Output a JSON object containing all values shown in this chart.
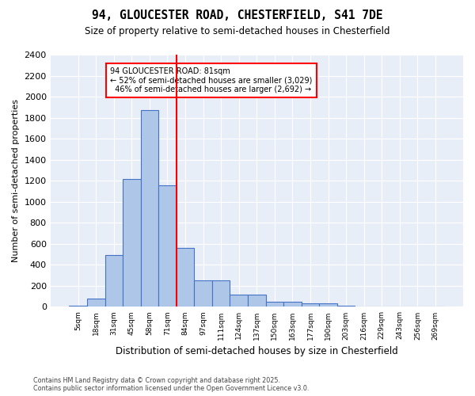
{
  "title1": "94, GLOUCESTER ROAD, CHESTERFIELD, S41 7DE",
  "title2": "Size of property relative to semi-detached houses in Chesterfield",
  "xlabel": "Distribution of semi-detached houses by size in Chesterfield",
  "ylabel": "Number of semi-detached properties",
  "bins": [
    "5sqm",
    "18sqm",
    "31sqm",
    "45sqm",
    "58sqm",
    "71sqm",
    "84sqm",
    "97sqm",
    "111sqm",
    "124sqm",
    "137sqm",
    "150sqm",
    "163sqm",
    "177sqm",
    "190sqm",
    "203sqm",
    "216sqm",
    "229sqm",
    "243sqm",
    "256sqm",
    "269sqm"
  ],
  "values": [
    10,
    80,
    490,
    1220,
    1870,
    1160,
    560,
    250,
    250,
    120,
    120,
    50,
    50,
    30,
    30,
    10,
    0,
    0,
    0,
    0,
    0
  ],
  "bar_color": "#aec6e8",
  "bar_edge_color": "#4472c4",
  "property_size": 81,
  "property_bin_index": 5,
  "smaller_pct": 52,
  "smaller_count": 3029,
  "larger_pct": 46,
  "larger_count": 2692,
  "ylim": [
    0,
    2400
  ],
  "yticks": [
    0,
    200,
    400,
    600,
    800,
    1000,
    1200,
    1400,
    1600,
    1800,
    2000,
    2200,
    2400
  ],
  "footnote": "Contains HM Land Registry data © Crown copyright and database right 2025.\nContains public sector information licensed under the Open Government Licence v3.0.",
  "background_color": "#e8eef8"
}
